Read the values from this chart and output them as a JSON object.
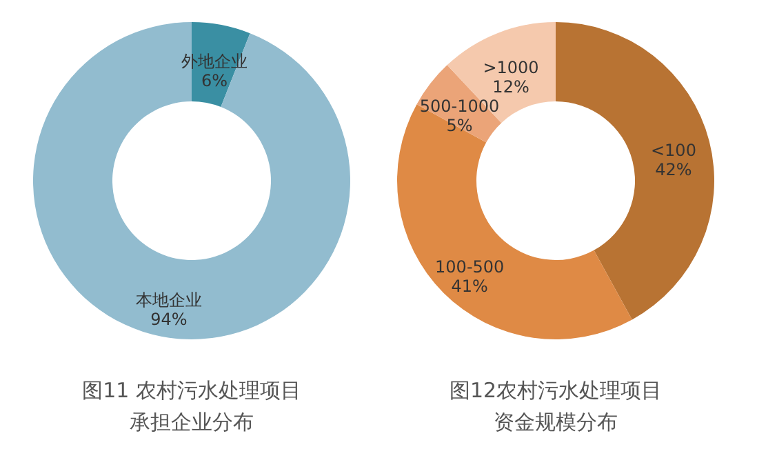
{
  "chart_data": [
    {
      "type": "donut",
      "title": "图11 农村污水处理项目",
      "subtitle": "承担企业分布",
      "categories": [
        "外地企业",
        "本地企业"
      ],
      "values": [
        6,
        94
      ],
      "colors": [
        "#3a8fa3",
        "#92bccf"
      ],
      "value_labels": [
        "6%",
        "94%"
      ]
    },
    {
      "type": "donut",
      "title": "图12农村污水处理项目",
      "subtitle": "资金规模分布",
      "categories": [
        "<100",
        "100-500",
        "500-1000",
        ">1000"
      ],
      "values": [
        42,
        41,
        5,
        12
      ],
      "colors": [
        "#b87333",
        "#df8a45",
        "#eba478",
        "#f5c9ad"
      ],
      "value_labels": [
        "42%",
        "41%",
        "5%",
        "12%"
      ]
    }
  ]
}
